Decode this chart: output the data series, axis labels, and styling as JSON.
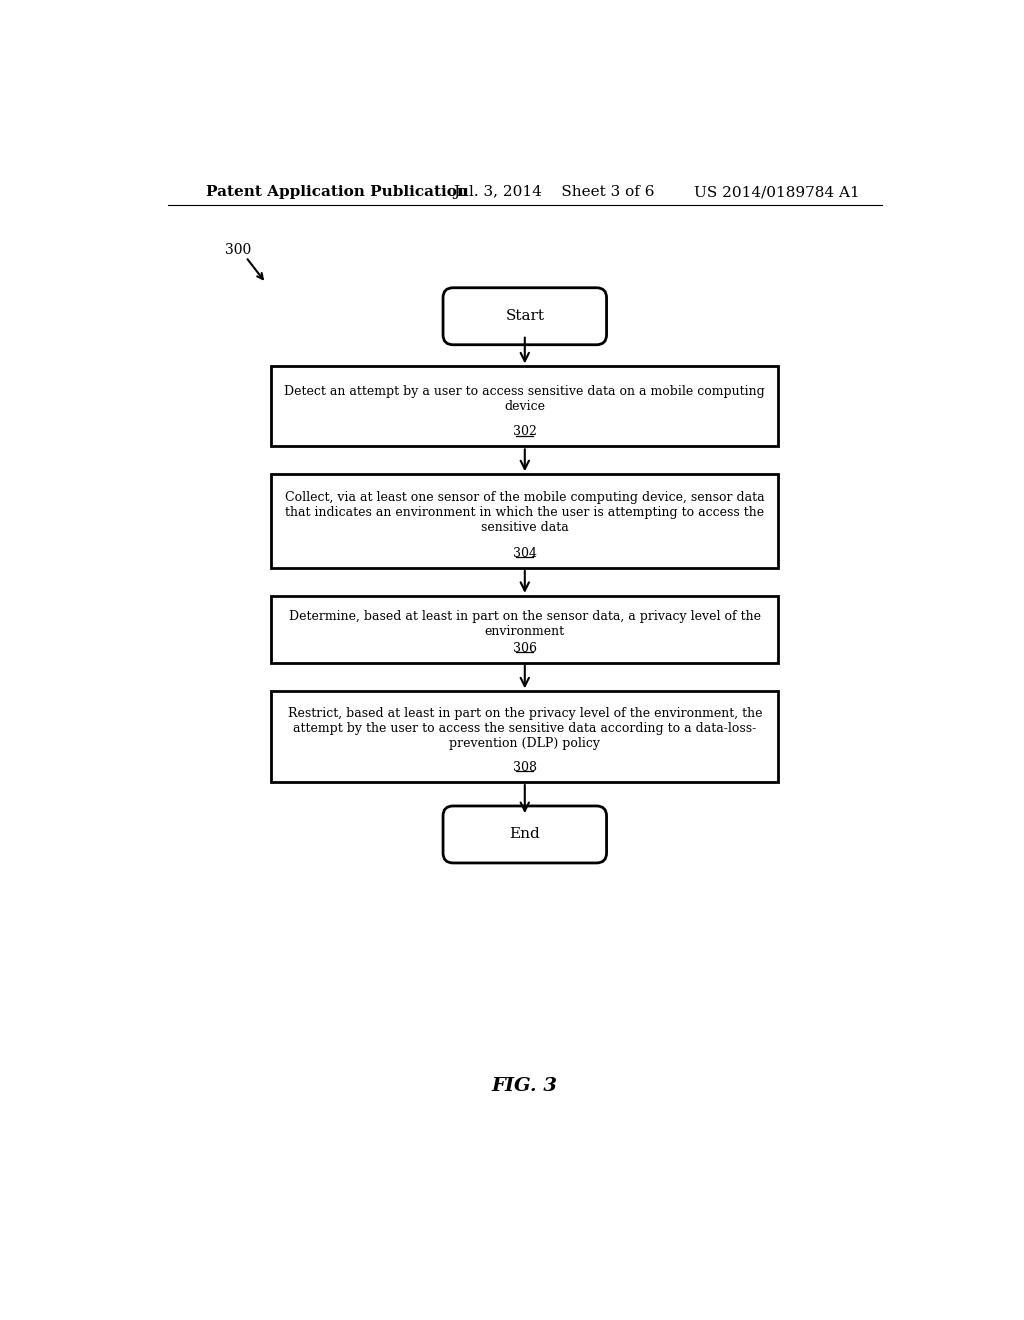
{
  "background_color": "#ffffff",
  "header_left": "Patent Application Publication",
  "header_mid": "Jul. 3, 2014    Sheet 3 of 6",
  "header_right": "US 2014/0189784 A1",
  "fig_label": "FIG. 3",
  "diagram_label": "300",
  "start_label": "Start",
  "end_label": "End",
  "box302_main": "Detect an attempt by a user to access sensitive data on a mobile computing\ndevice",
  "box302_ref": "302",
  "box304_main": "Collect, via at least one sensor of the mobile computing device, sensor data\nthat indicates an environment in which the user is attempting to access the\nsensitive data",
  "box304_ref": "304",
  "box306_main": "Determine, based at least in part on the sensor data, a privacy level of the\nenvironment",
  "box306_ref": "306",
  "box308_main": "Restrict, based at least in part on the privacy level of the environment, the\nattempt by the user to access the sensitive data according to a data-loss-\nprevention (DLP) policy",
  "box308_ref": "308",
  "font_size_header": 11,
  "font_size_body": 9,
  "font_size_fig": 14
}
